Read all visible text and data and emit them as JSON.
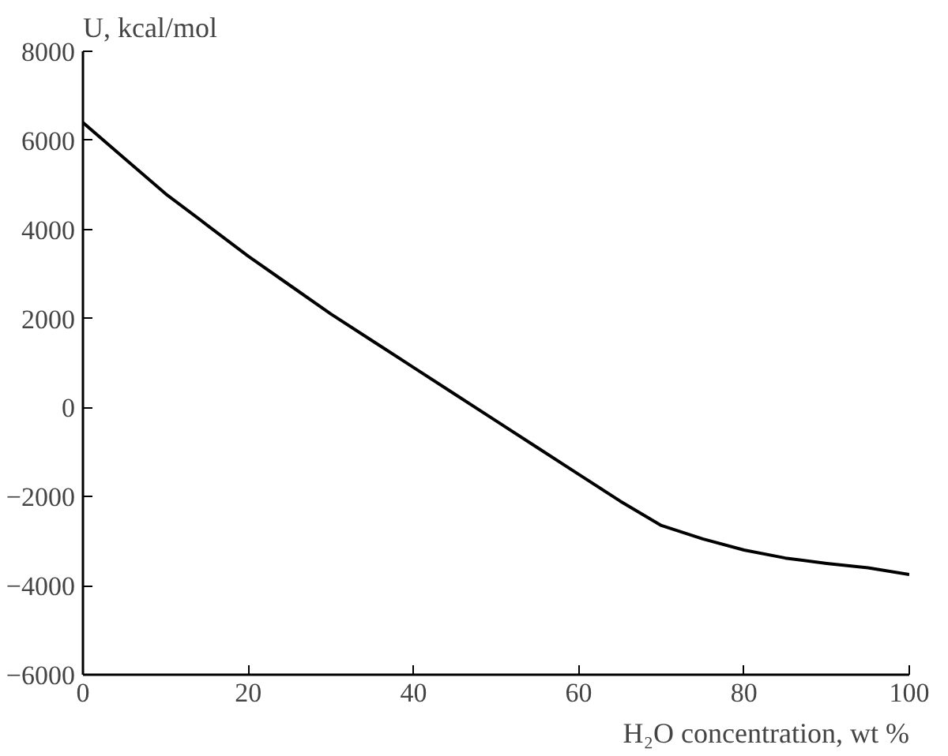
{
  "chart_data": {
    "type": "line",
    "xlabel": "H₂O concentration, wt %",
    "ylabel": "U, kcal/mol",
    "x": [
      0,
      5,
      10,
      15,
      20,
      25,
      30,
      35,
      40,
      45,
      50,
      55,
      60,
      65,
      70,
      75,
      80,
      85,
      90,
      95,
      100
    ],
    "series": [
      {
        "color": "#000000",
        "values": [
          6400,
          5600,
          4800,
          4100,
          3400,
          2750,
          2100,
          1500,
          900,
          300,
          -300,
          -900,
          -1500,
          -2100,
          -2650,
          -2950,
          -3200,
          -3380,
          -3500,
          -3600,
          -3750
        ]
      }
    ],
    "xlim": [
      0,
      100
    ],
    "ylim": [
      -6000,
      8000
    ],
    "xticks": [
      0,
      20,
      40,
      60,
      80,
      100
    ],
    "yticks": [
      -6000,
      -4000,
      -2000,
      0,
      2000,
      4000,
      6000,
      8000
    ],
    "grid": false,
    "marker": "none",
    "line_style": "solid"
  }
}
